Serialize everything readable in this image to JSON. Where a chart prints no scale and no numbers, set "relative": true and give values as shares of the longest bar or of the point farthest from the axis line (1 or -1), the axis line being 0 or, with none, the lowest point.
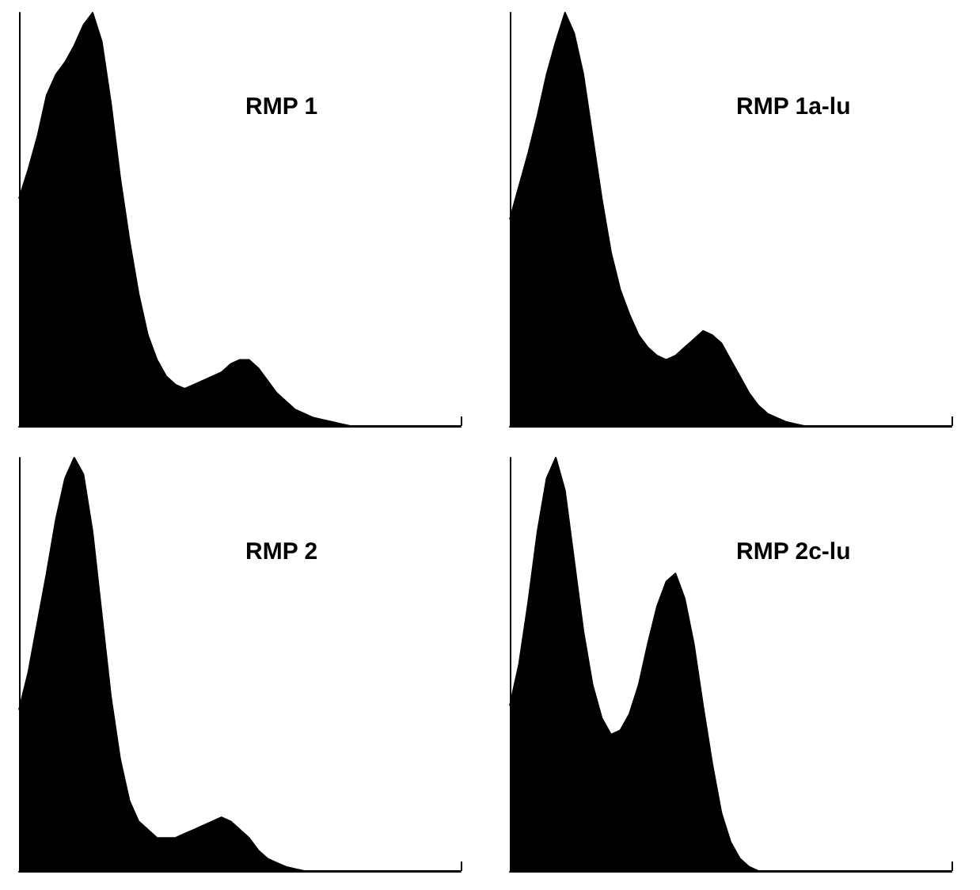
{
  "chart_data": [
    {
      "type": "area",
      "title": "RMP 1",
      "relative": true,
      "color": "#000000",
      "categories": [
        null,
        null,
        null,
        null,
        null,
        null,
        null,
        null,
        null,
        null,
        null,
        null,
        null,
        null,
        null,
        null,
        null,
        null,
        null,
        null,
        null,
        null,
        null,
        null,
        null,
        null,
        null,
        null,
        null,
        null,
        null,
        null,
        null,
        null,
        null,
        null,
        null,
        null,
        null,
        null,
        null,
        null,
        null,
        null,
        null,
        null,
        null,
        null,
        null
      ],
      "values": [
        0.55,
        0.62,
        0.7,
        0.8,
        0.85,
        0.88,
        0.92,
        0.97,
        1.0,
        0.93,
        0.78,
        0.6,
        0.45,
        0.32,
        0.22,
        0.16,
        0.12,
        0.1,
        0.09,
        0.1,
        0.11,
        0.12,
        0.13,
        0.15,
        0.16,
        0.16,
        0.14,
        0.11,
        0.08,
        0.06,
        0.04,
        0.03,
        0.02,
        0.015,
        0.01,
        0.005,
        0,
        0,
        0,
        0,
        0,
        0,
        0,
        0,
        0,
        0,
        0,
        0,
        0
      ]
    },
    {
      "type": "area",
      "title": "RMP 1a-lu",
      "relative": true,
      "color": "#000000",
      "categories": [
        null,
        null,
        null,
        null,
        null,
        null,
        null,
        null,
        null,
        null,
        null,
        null,
        null,
        null,
        null,
        null,
        null,
        null,
        null,
        null,
        null,
        null,
        null,
        null,
        null,
        null,
        null,
        null,
        null,
        null,
        null,
        null,
        null,
        null,
        null,
        null,
        null,
        null,
        null,
        null,
        null,
        null,
        null,
        null,
        null,
        null,
        null,
        null,
        null
      ],
      "values": [
        0.5,
        0.58,
        0.66,
        0.75,
        0.85,
        0.93,
        1.0,
        0.95,
        0.85,
        0.7,
        0.55,
        0.42,
        0.33,
        0.27,
        0.22,
        0.19,
        0.17,
        0.16,
        0.17,
        0.19,
        0.21,
        0.23,
        0.22,
        0.2,
        0.16,
        0.12,
        0.08,
        0.05,
        0.03,
        0.02,
        0.01,
        0.005,
        0,
        0,
        0,
        0,
        0,
        0,
        0,
        0,
        0,
        0,
        0,
        0,
        0,
        0,
        0,
        0,
        0
      ]
    },
    {
      "type": "area",
      "title": "RMP 2",
      "relative": true,
      "color": "#000000",
      "categories": [
        null,
        null,
        null,
        null,
        null,
        null,
        null,
        null,
        null,
        null,
        null,
        null,
        null,
        null,
        null,
        null,
        null,
        null,
        null,
        null,
        null,
        null,
        null,
        null,
        null,
        null,
        null,
        null,
        null,
        null,
        null,
        null,
        null,
        null,
        null,
        null,
        null,
        null,
        null,
        null,
        null,
        null,
        null,
        null,
        null,
        null,
        null,
        null,
        null
      ],
      "values": [
        0.39,
        0.48,
        0.6,
        0.72,
        0.85,
        0.95,
        1.0,
        0.96,
        0.82,
        0.62,
        0.42,
        0.27,
        0.17,
        0.12,
        0.1,
        0.08,
        0.08,
        0.08,
        0.09,
        0.1,
        0.11,
        0.12,
        0.13,
        0.12,
        0.1,
        0.08,
        0.05,
        0.03,
        0.02,
        0.01,
        0.005,
        0,
        0,
        0,
        0,
        0,
        0,
        0,
        0,
        0,
        0,
        0,
        0,
        0,
        0,
        0,
        0,
        0,
        0
      ]
    },
    {
      "type": "area",
      "title": "RMP 2c-lu",
      "relative": true,
      "color": "#000000",
      "categories": [
        null,
        null,
        null,
        null,
        null,
        null,
        null,
        null,
        null,
        null,
        null,
        null,
        null,
        null,
        null,
        null,
        null,
        null,
        null,
        null,
        null,
        null,
        null,
        null,
        null,
        null,
        null,
        null,
        null,
        null,
        null,
        null,
        null,
        null,
        null,
        null,
        null,
        null,
        null,
        null,
        null,
        null,
        null,
        null,
        null,
        null,
        null,
        null,
        null
      ],
      "values": [
        0.4,
        0.5,
        0.65,
        0.82,
        0.95,
        1.0,
        0.92,
        0.75,
        0.58,
        0.45,
        0.37,
        0.33,
        0.34,
        0.38,
        0.45,
        0.55,
        0.64,
        0.7,
        0.72,
        0.66,
        0.55,
        0.4,
        0.26,
        0.14,
        0.07,
        0.03,
        0.01,
        0,
        0,
        0,
        0,
        0,
        0,
        0,
        0,
        0,
        0,
        0,
        0,
        0,
        0,
        0,
        0,
        0,
        0,
        0,
        0,
        0,
        0
      ]
    }
  ]
}
